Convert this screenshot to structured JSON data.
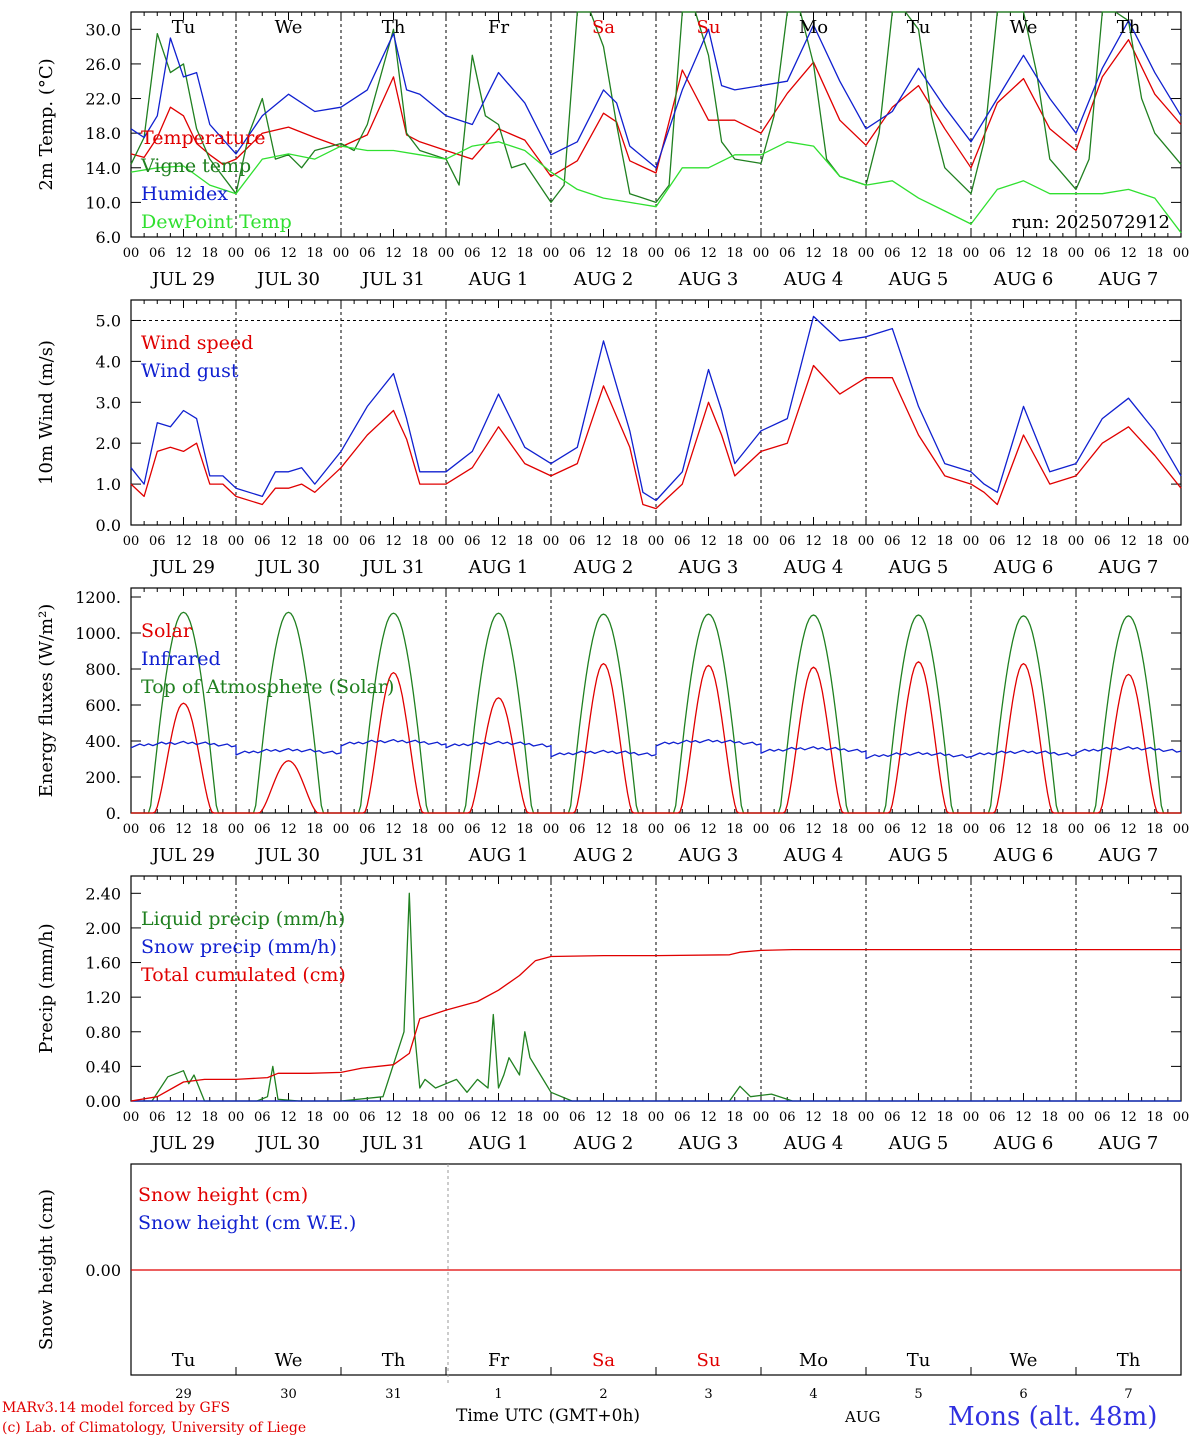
{
  "run_label": "run: 2025072912",
  "day_names": [
    {
      "text": "Tu",
      "color": "#000000"
    },
    {
      "text": "We",
      "color": "#000000"
    },
    {
      "text": "Th",
      "color": "#000000"
    },
    {
      "text": "Fr",
      "color": "#000000"
    },
    {
      "text": "Sa",
      "color": "#e00000"
    },
    {
      "text": "Su",
      "color": "#e00000"
    },
    {
      "text": "Mo",
      "color": "#000000"
    },
    {
      "text": "Tu",
      "color": "#000000"
    },
    {
      "text": "We",
      "color": "#000000"
    },
    {
      "text": "Th",
      "color": "#000000"
    }
  ],
  "date_labels": [
    "JUL 29",
    "JUL 30",
    "JUL 31",
    "AUG  1",
    "AUG  2",
    "AUG  3",
    "AUG  4",
    "AUG  5",
    "AUG  6",
    "AUG  7"
  ],
  "hour_labels": [
    "00",
    "06",
    "12",
    "18"
  ],
  "final_hour_label": "00",
  "bottom_day_numbers": [
    "29",
    "30",
    "31",
    "1",
    "2",
    "3",
    "4",
    "5",
    "6",
    "7"
  ],
  "footer": {
    "credit_line1": "MARv3.14 model forced by GFS",
    "credit_line2": "(c) Lab. of Climatology, University of Liege",
    "xlabel": "Time UTC (GMT+0h)",
    "month_label": "AUG",
    "station": "Mons (alt. 48m)"
  },
  "chart_data": [
    {
      "type": "line",
      "ylabel": "2m Temp. (°C)",
      "ylim": [
        6,
        32
      ],
      "yticks": [
        "6.0",
        "10.0",
        "14.0",
        "18.0",
        "22.0",
        "26.0",
        "30.0"
      ],
      "x_unit": "days since JUL 29 00 UTC",
      "series": [
        {
          "name": "Temperature",
          "color": "#e00000",
          "x": [
            0,
            0.125,
            0.25,
            0.375,
            0.5,
            0.625,
            0.75,
            0.875,
            1,
            1.25,
            1.5,
            1.75,
            2,
            2.25,
            2.5,
            2.625,
            2.75,
            3,
            3.25,
            3.5,
            3.75,
            4,
            4.25,
            4.5,
            4.625,
            4.75,
            5,
            5.25,
            5.5,
            5.75,
            6,
            6.25,
            6.5,
            6.75,
            7,
            7.25,
            7.5,
            7.75,
            8,
            8.25,
            8.5,
            8.75,
            9,
            9.25,
            9.5,
            9.75,
            10
          ],
          "y": [
            15.6,
            15.2,
            17.5,
            21.0,
            20.0,
            16.8,
            15.5,
            14.4,
            15.0,
            18.0,
            18.7,
            17.5,
            16.4,
            17.8,
            24.5,
            17.8,
            17.0,
            16.0,
            15.0,
            18.5,
            17.2,
            13.0,
            14.8,
            20.3,
            19.3,
            14.8,
            13.4,
            25.3,
            19.5,
            19.5,
            18.0,
            22.6,
            26.2,
            19.5,
            16.6,
            21.0,
            23.5,
            18.5,
            14.0,
            21.5,
            24.3,
            18.5,
            16.0,
            24.5,
            28.8,
            22.5,
            19.0
          ]
        },
        {
          "name": "Vigne temp",
          "color": "#208020",
          "x": [
            0,
            0.125,
            0.25,
            0.375,
            0.5,
            0.625,
            0.75,
            1,
            1.125,
            1.25,
            1.375,
            1.5,
            1.625,
            1.75,
            2,
            2.125,
            2.25,
            2.5,
            2.625,
            2.75,
            3,
            3.125,
            3.25,
            3.375,
            3.5,
            3.625,
            3.75,
            4,
            4.125,
            4.25,
            4.375,
            4.5,
            4.625,
            4.75,
            5,
            5.125,
            5.25,
            5.375,
            5.5,
            5.625,
            5.75,
            6,
            6.125,
            6.25,
            6.375,
            6.5,
            6.625,
            6.75,
            7,
            7.125,
            7.25,
            7.375,
            7.5,
            7.625,
            7.75,
            8,
            8.125,
            8.25,
            8.375,
            8.5,
            8.625,
            8.75,
            9,
            9.125,
            9.25,
            9.375,
            9.5,
            9.625,
            9.75,
            10
          ],
          "y": [
            14.4,
            17.5,
            29.5,
            25.0,
            26.0,
            18.5,
            15.0,
            11.0,
            18.0,
            22.0,
            15.0,
            15.5,
            14.0,
            16.0,
            16.8,
            16.0,
            19.0,
            30.0,
            18.0,
            16.0,
            15.0,
            12.0,
            27.0,
            20.0,
            19.0,
            14.0,
            14.5,
            10.0,
            12.0,
            32.0,
            32.0,
            28.0,
            19.0,
            11.0,
            10.0,
            12.0,
            32.0,
            32.0,
            27.0,
            17.0,
            15.0,
            14.5,
            20.0,
            32.0,
            32.0,
            26.0,
            15.0,
            13.0,
            12.0,
            18.0,
            32.0,
            32.0,
            30.0,
            20.0,
            14.0,
            11.0,
            17.0,
            32.0,
            32.0,
            32.0,
            25.0,
            15.0,
            11.5,
            15.0,
            32.0,
            32.0,
            31.0,
            22.0,
            18.0,
            14.4
          ]
        },
        {
          "name": "Humidex",
          "color": "#1020d0",
          "x": [
            0,
            0.125,
            0.25,
            0.375,
            0.5,
            0.625,
            0.75,
            1,
            1.25,
            1.5,
            1.75,
            2,
            2.25,
            2.5,
            2.625,
            2.75,
            3,
            3.25,
            3.5,
            3.75,
            4,
            4.25,
            4.5,
            4.625,
            4.75,
            5,
            5.25,
            5.5,
            5.625,
            5.75,
            6,
            6.25,
            6.5,
            6.75,
            7,
            7.25,
            7.5,
            7.75,
            8,
            8.25,
            8.5,
            8.75,
            9,
            9.25,
            9.5,
            9.75,
            10
          ],
          "y": [
            18.5,
            17.5,
            20.0,
            29.0,
            24.5,
            25.0,
            19.0,
            15.6,
            20.0,
            22.5,
            20.5,
            21.0,
            23.0,
            29.5,
            23.0,
            22.5,
            20.0,
            19.0,
            25.0,
            21.5,
            15.5,
            17.0,
            23.0,
            21.5,
            16.5,
            14.0,
            23.0,
            30.0,
            23.5,
            23.0,
            23.5,
            24.0,
            30.5,
            24.0,
            18.5,
            20.5,
            25.5,
            21.0,
            17.0,
            22.0,
            27.0,
            22.0,
            18.0,
            25.5,
            31.0,
            25.0,
            20.0
          ]
        },
        {
          "name": "DewPoint Temp",
          "color": "#30e030",
          "x": [
            0,
            0.25,
            0.5,
            0.75,
            1,
            1.25,
            1.5,
            1.75,
            2,
            2.25,
            2.5,
            2.75,
            3,
            3.25,
            3.5,
            3.75,
            4,
            4.25,
            4.5,
            4.75,
            5,
            5.25,
            5.5,
            5.75,
            6,
            6.25,
            6.5,
            6.75,
            7,
            7.25,
            7.5,
            7.75,
            8,
            8.25,
            8.5,
            8.75,
            9,
            9.25,
            9.5,
            9.75,
            10
          ],
          "y": [
            13.5,
            14.0,
            14.2,
            12.0,
            11.0,
            15.0,
            15.6,
            15.0,
            16.5,
            16.0,
            16.0,
            15.5,
            15.0,
            16.5,
            17.0,
            16.0,
            13.5,
            11.5,
            10.5,
            10.0,
            9.5,
            14.0,
            14.0,
            15.5,
            15.5,
            17.0,
            16.5,
            13.0,
            12.0,
            12.5,
            10.5,
            9.0,
            7.5,
            11.5,
            12.5,
            11.0,
            11.0,
            11.0,
            11.5,
            10.5,
            6.5
          ]
        }
      ]
    },
    {
      "type": "line",
      "ylabel": "10m Wind (m/s)",
      "ylim": [
        0,
        5.5
      ],
      "yticks": [
        "0.0",
        "1.0",
        "2.0",
        "3.0",
        "4.0",
        "5.0"
      ],
      "x_unit": "days since JUL 29 00 UTC",
      "series": [
        {
          "name": "Wind speed",
          "color": "#e00000",
          "x": [
            0,
            0.125,
            0.25,
            0.375,
            0.5,
            0.625,
            0.75,
            0.875,
            1,
            1.25,
            1.375,
            1.5,
            1.625,
            1.75,
            2,
            2.25,
            2.5,
            2.625,
            2.75,
            3,
            3.25,
            3.5,
            3.75,
            4,
            4.25,
            4.5,
            4.75,
            4.875,
            5,
            5.25,
            5.5,
            5.625,
            5.75,
            6,
            6.25,
            6.5,
            6.75,
            7,
            7.25,
            7.5,
            7.75,
            8,
            8.125,
            8.25,
            8.5,
            8.75,
            9,
            9.25,
            9.5,
            9.75,
            10
          ],
          "y": [
            1.0,
            0.7,
            1.8,
            1.9,
            1.8,
            2.0,
            1.0,
            1.0,
            0.7,
            0.5,
            0.9,
            0.9,
            1.0,
            0.8,
            1.4,
            2.2,
            2.8,
            2.1,
            1.0,
            1.0,
            1.4,
            2.4,
            1.5,
            1.2,
            1.5,
            3.4,
            1.9,
            0.5,
            0.4,
            1.0,
            3.0,
            2.2,
            1.2,
            1.8,
            2.0,
            3.9,
            3.2,
            3.6,
            3.6,
            2.2,
            1.2,
            1.0,
            0.8,
            0.5,
            2.2,
            1.0,
            1.2,
            2.0,
            2.4,
            1.7,
            0.9
          ]
        },
        {
          "name": "Wind gust",
          "color": "#1020d0",
          "x": [
            0,
            0.125,
            0.25,
            0.375,
            0.5,
            0.625,
            0.75,
            0.875,
            1,
            1.25,
            1.375,
            1.5,
            1.625,
            1.75,
            2,
            2.25,
            2.5,
            2.625,
            2.75,
            3,
            3.25,
            3.5,
            3.75,
            4,
            4.25,
            4.5,
            4.75,
            4.875,
            5,
            5.25,
            5.5,
            5.625,
            5.75,
            6,
            6.25,
            6.5,
            6.75,
            7,
            7.25,
            7.5,
            7.75,
            8,
            8.125,
            8.25,
            8.5,
            8.75,
            9,
            9.25,
            9.5,
            9.75,
            10
          ],
          "y": [
            1.4,
            1.0,
            2.5,
            2.4,
            2.8,
            2.6,
            1.2,
            1.2,
            0.9,
            0.7,
            1.3,
            1.3,
            1.4,
            1.0,
            1.8,
            2.9,
            3.7,
            2.6,
            1.3,
            1.3,
            1.8,
            3.2,
            1.9,
            1.5,
            1.9,
            4.5,
            2.3,
            0.8,
            0.6,
            1.3,
            3.8,
            2.8,
            1.5,
            2.3,
            2.6,
            5.1,
            4.5,
            4.6,
            4.8,
            2.9,
            1.5,
            1.3,
            1.0,
            0.8,
            2.9,
            1.3,
            1.5,
            2.6,
            3.1,
            2.3,
            1.2
          ]
        }
      ]
    },
    {
      "type": "line",
      "ylabel": "Energy fluxes (W/m²)",
      "ylim": [
        0,
        1250
      ],
      "yticks": [
        "0.",
        "200.",
        "400.",
        "600.",
        "800.",
        "1000.",
        "1200."
      ],
      "x_unit": "days since JUL 29 00 UTC",
      "series": [
        {
          "name": "Solar",
          "color": "#e00000",
          "daily_peaks": [
            610,
            290,
            780,
            640,
            830,
            820,
            810,
            840,
            830,
            770
          ]
        },
        {
          "name": "Infrared",
          "color": "#1020d0",
          "daily_mean": [
            370,
            330,
            380,
            370,
            320,
            380,
            340,
            310,
            320,
            340
          ]
        },
        {
          "name": "Top of Atmosphere (Solar)",
          "color": "#208020",
          "daily_peaks": [
            1115,
            1115,
            1110,
            1110,
            1105,
            1105,
            1100,
            1100,
            1095,
            1095
          ]
        }
      ]
    },
    {
      "type": "line",
      "ylabel": "Precip (mm/h)",
      "ylim": [
        0,
        2.6
      ],
      "yticks": [
        "0.00",
        "0.40",
        "0.80",
        "1.20",
        "1.60",
        "2.00",
        "2.40"
      ],
      "x_unit": "days since JUL 29 00 UTC",
      "series": [
        {
          "name": "Liquid precip (mm/h)",
          "color": "#208020",
          "x": [
            0,
            0.2,
            0.35,
            0.5,
            0.55,
            0.6,
            0.7,
            1.0,
            1.2,
            1.3,
            1.35,
            1.4,
            1.6,
            2.0,
            2.4,
            2.6,
            2.65,
            2.7,
            2.75,
            2.8,
            2.9,
            3.0,
            3.1,
            3.2,
            3.3,
            3.4,
            3.45,
            3.5,
            3.55,
            3.6,
            3.7,
            3.75,
            3.8,
            3.9,
            4.0,
            4.2,
            5.7,
            5.8,
            5.9,
            6.1,
            6.3,
            10
          ],
          "y": [
            0,
            0,
            0.28,
            0.35,
            0.2,
            0.3,
            0,
            0,
            0,
            0.05,
            0.4,
            0.02,
            0,
            0,
            0.05,
            0.8,
            2.4,
            0.8,
            0.15,
            0.25,
            0.15,
            0.2,
            0.25,
            0.1,
            0.25,
            0.15,
            1.0,
            0.15,
            0.3,
            0.5,
            0.3,
            0.8,
            0.5,
            0.3,
            0.1,
            0,
            0,
            0.17,
            0.05,
            0.08,
            0,
            0
          ]
        },
        {
          "name": "Snow precip (mm/h)",
          "color": "#1020d0",
          "x": [
            0,
            10
          ],
          "y": [
            0,
            0
          ]
        },
        {
          "name": "Total cumulated (cm)",
          "color": "#e00000",
          "x": [
            0,
            0.25,
            0.5,
            0.7,
            1.0,
            1.3,
            1.4,
            1.7,
            2.0,
            2.2,
            2.5,
            2.65,
            2.75,
            3.0,
            3.3,
            3.5,
            3.7,
            3.85,
            4.0,
            4.5,
            5.0,
            5.7,
            5.8,
            6.0,
            6.3,
            10
          ],
          "y": [
            0,
            0.05,
            0.22,
            0.25,
            0.25,
            0.27,
            0.32,
            0.32,
            0.33,
            0.38,
            0.42,
            0.55,
            0.95,
            1.05,
            1.15,
            1.28,
            1.45,
            1.62,
            1.67,
            1.68,
            1.68,
            1.69,
            1.72,
            1.74,
            1.75,
            1.75
          ]
        }
      ]
    },
    {
      "type": "line",
      "ylabel": "Snow height (cm)",
      "yticks": [
        "0.00"
      ],
      "x_unit": "days since JUL 29 00 UTC",
      "series": [
        {
          "name": "Snow height (cm)",
          "color": "#e00000",
          "x": [
            0,
            10
          ],
          "y": [
            0,
            0
          ]
        },
        {
          "name": "Snow height (cm W.E.)",
          "color": "#1020d0",
          "x": [
            0,
            10
          ],
          "y": [
            0,
            0
          ]
        }
      ]
    }
  ]
}
